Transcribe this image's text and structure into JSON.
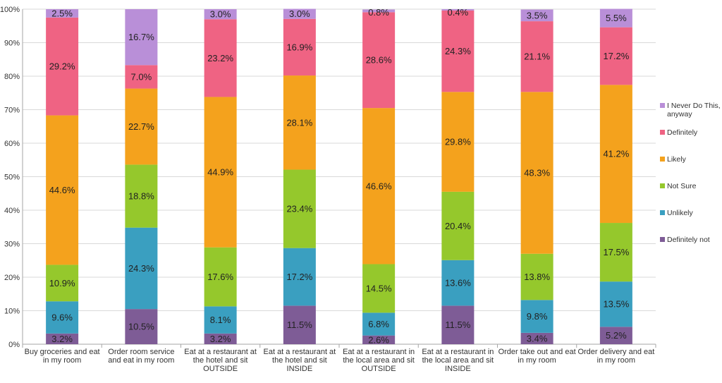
{
  "chart_data": {
    "type": "bar",
    "stacked": true,
    "percent_stacked": true,
    "title": "",
    "xlabel": "",
    "ylabel": "",
    "ylim": [
      0,
      100
    ],
    "y_ticks": [
      "0%",
      "10%",
      "20%",
      "30%",
      "40%",
      "50%",
      "60%",
      "70%",
      "80%",
      "90%",
      "100%"
    ],
    "grid": true,
    "legend_position": "right",
    "categories": [
      [
        "Buy groceries and eat",
        "in my room"
      ],
      [
        "Order room service",
        "and eat in my room"
      ],
      [
        "Eat at a restaurant at",
        "the hotel and sit",
        "OUTSIDE"
      ],
      [
        "Eat at a restaurant at",
        "the hotel and sit",
        "INSIDE"
      ],
      [
        "Eat at a restaurant in",
        "the local area and sit",
        "OUTSIDE"
      ],
      [
        "Eat at a restaurant in",
        "the local area and sit",
        "INSIDE"
      ],
      [
        "Order take out and eat",
        "in my room"
      ],
      [
        "Order delivery and eat",
        "in my room"
      ]
    ],
    "series": [
      {
        "name": "Definitely not",
        "color": "#7e5c96",
        "values": [
          3.2,
          10.5,
          3.2,
          11.5,
          2.6,
          11.5,
          3.4,
          5.2
        ]
      },
      {
        "name": "Unlikely",
        "color": "#3a9fc0",
        "values": [
          9.6,
          24.3,
          8.1,
          17.2,
          6.8,
          13.6,
          9.8,
          13.5
        ]
      },
      {
        "name": "Not Sure",
        "color": "#95c82c",
        "values": [
          10.9,
          18.8,
          17.6,
          23.4,
          14.5,
          20.4,
          13.8,
          17.5
        ]
      },
      {
        "name": "Likely",
        "color": "#f4a21d",
        "values": [
          44.6,
          22.7,
          44.9,
          28.1,
          46.6,
          29.8,
          48.3,
          41.2
        ]
      },
      {
        "name": "Definitely",
        "color": "#ef6383",
        "values": [
          29.2,
          7.0,
          23.2,
          16.9,
          28.6,
          24.3,
          21.1,
          17.2
        ]
      },
      {
        "name": [
          "I Never Do This,",
          "anyway"
        ],
        "color": "#b98fd8",
        "values": [
          2.5,
          16.7,
          3.0,
          3.0,
          0.8,
          0.4,
          3.5,
          5.5
        ]
      }
    ],
    "value_suffix": "%"
  }
}
